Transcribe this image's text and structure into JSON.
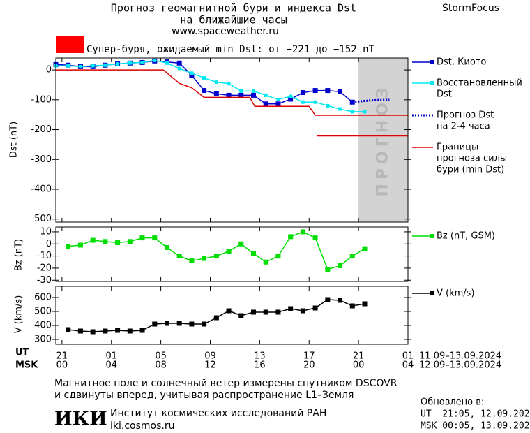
{
  "header": {
    "title_line1": "Прогноз геомагнитной бури и индекса Dst",
    "title_line2": "на ближайшие часы",
    "url": "www.spaceweather.ru",
    "brand": "StormFocus"
  },
  "alert": {
    "color": "#ff0000",
    "text": "Супер-буря, ожидаемый min Dst: от −221 до −152 nT"
  },
  "chart_data": [
    {
      "type": "line",
      "ylabel": "Dst (nT)",
      "xlim": [
        -0.5,
        28
      ],
      "ylim": [
        -510,
        40
      ],
      "yticks": [
        0,
        -100,
        -200,
        -300,
        -400,
        -500
      ],
      "forecast_region": [
        24,
        28
      ],
      "forecast_color": "#d3d3d3",
      "forecast_label": "ПРОГНОЗ",
      "series": [
        {
          "name": [
            "Dst, Киото"
          ],
          "color": "#0000cc",
          "style": "solid",
          "marker": "square",
          "x": [
            -0.5,
            0.5,
            1.5,
            2.5,
            3.5,
            4.5,
            5.5,
            6.5,
            7.5,
            8.5,
            9.5,
            10.5,
            11.5,
            12.5,
            13.5,
            14.5,
            15.5,
            16.5,
            17.5,
            18.5,
            19.5,
            20.5,
            21.5,
            22.5,
            23.5
          ],
          "values": [
            18,
            16,
            11,
            11,
            16,
            20,
            23,
            25,
            30,
            27,
            23,
            -18,
            -69,
            -80,
            -85,
            -85,
            -85,
            -114,
            -114,
            -98,
            -76,
            -69,
            -69,
            -73,
            -108
          ]
        },
        {
          "name": [
            "Восстановленный",
            "Dst"
          ],
          "color": "#00e8f0",
          "style": "solid",
          "marker": "small-square",
          "x": [
            -0.5,
            0.5,
            1.5,
            2.5,
            3.5,
            4.5,
            5.5,
            6.5,
            7.5,
            8.5,
            9.5,
            10.5,
            11.5,
            12.5,
            13.5,
            14.5,
            15.5,
            16.5,
            17.5,
            18.5,
            19.5,
            20.5,
            21.5,
            22.5,
            23.5,
            24.5
          ],
          "values": [
            14,
            14,
            11,
            14,
            16,
            20,
            23,
            25,
            32,
            23,
            5,
            -11,
            -27,
            -41,
            -46,
            -71,
            -71,
            -85,
            -99,
            -89,
            -108,
            -108,
            -120,
            -131,
            -140,
            -140
          ]
        },
        {
          "name": [
            "Прогноз Dst",
            "на 2-4 часа"
          ],
          "color": "#0000cc",
          "style": "dotted",
          "marker": "none",
          "x": [
            23.5,
            24.5,
            25.5,
            26.5
          ],
          "values": [
            -108,
            -104,
            -101,
            -100
          ]
        },
        {
          "name": [
            "Границы",
            "прогноза силы",
            "бури (min Dst)"
          ],
          "color": "#dd0000",
          "style": "solid",
          "marker": "none",
          "x": [
            -0.5,
            8.2,
            9.5,
            10.5,
            11.5,
            15.2,
            15.6,
            20.0,
            20.5,
            28
          ],
          "values": [
            0,
            0,
            -45,
            -60,
            -92,
            -92,
            -122,
            -122,
            -152,
            -152
          ]
        },
        {
          "color": "#dd0000",
          "style": "solid",
          "marker": "none",
          "x": [
            20.6,
            28
          ],
          "values": [
            -221,
            -221
          ]
        }
      ]
    },
    {
      "type": "line",
      "ylabel": "Bz (nT)",
      "xlim": [
        -0.5,
        28
      ],
      "ylim": [
        -31,
        14
      ],
      "yticks": [
        10,
        0,
        -10,
        -20,
        -30
      ],
      "series": [
        {
          "name": [
            "Bz (nT, GSM)"
          ],
          "color": "#00dd00",
          "style": "solid",
          "marker": "square",
          "x": [
            0.5,
            1.5,
            2.5,
            3.5,
            4.5,
            5.5,
            6.5,
            7.5,
            8.5,
            9.5,
            10.5,
            11.5,
            12.5,
            13.5,
            14.5,
            15.5,
            16.5,
            17.5,
            18.5,
            19.5,
            20.5,
            21.5,
            22.5,
            23.5,
            24.5
          ],
          "values": [
            -2,
            -1,
            3,
            2,
            1,
            2,
            5,
            5,
            -3,
            -10,
            -14,
            -12,
            -10,
            -6,
            0,
            -8,
            -15,
            -10,
            6,
            10,
            5,
            -21,
            -18,
            -10,
            -4
          ]
        }
      ]
    },
    {
      "type": "line",
      "ylabel": "V (km/s)",
      "xlim": [
        -0.5,
        28
      ],
      "ylim": [
        265,
        680
      ],
      "yticks": [
        300,
        400,
        500,
        600
      ],
      "series": [
        {
          "name": [
            "V (km/s)"
          ],
          "color": "#000000",
          "style": "solid",
          "marker": "square",
          "x": [
            0.5,
            1.5,
            2.5,
            3.5,
            4.5,
            5.5,
            6.5,
            7.5,
            8.5,
            9.5,
            10.5,
            11.5,
            12.5,
            13.5,
            14.5,
            15.5,
            16.5,
            17.5,
            18.5,
            19.5,
            20.5,
            21.5,
            22.5,
            23.5,
            24.5
          ],
          "values": [
            370,
            360,
            355,
            360,
            365,
            360,
            365,
            410,
            415,
            415,
            410,
            410,
            455,
            505,
            470,
            495,
            495,
            495,
            520,
            505,
            525,
            585,
            580,
            540,
            555
          ]
        }
      ]
    }
  ],
  "x_axis": {
    "ut_label": "UT",
    "msk_label": "MSK",
    "ut_range": "11.09–13.09.2024",
    "msk_range": "12.09–13.09.2024",
    "ut_ticks": [
      {
        "value": 0,
        "label": "21"
      },
      {
        "value": 4,
        "label": "01"
      },
      {
        "value": 8,
        "label": "05"
      },
      {
        "value": 12,
        "label": "09"
      },
      {
        "value": 16,
        "label": "13"
      },
      {
        "value": 20,
        "label": "17"
      },
      {
        "value": 24,
        "label": "21"
      },
      {
        "value": 28,
        "label": "01"
      }
    ],
    "msk_ticks": [
      {
        "value": 0,
        "label": "00"
      },
      {
        "value": 4,
        "label": "04"
      },
      {
        "value": 8,
        "label": "08"
      },
      {
        "value": 12,
        "label": "12"
      },
      {
        "value": 16,
        "label": "16"
      },
      {
        "value": 20,
        "label": "20"
      },
      {
        "value": 24,
        "label": "00"
      },
      {
        "value": 28,
        "label": "04"
      }
    ]
  },
  "footer": {
    "note_line1": "Магнитное поле и солнечный ветер измерены спутником DSCOVR",
    "note_line2": "и сдвинуты вперед, учитывая распространение L1–Земля",
    "updated_label": "Обновлено в:",
    "updated_ut": "UT  21:05, 12.09.2024",
    "updated_msk": "MSK 00:05, 13.09.2024",
    "logo": "ИКИ",
    "institute": "Институт космических исследований РАН",
    "institute_url": "iki.cosmos.ru"
  }
}
